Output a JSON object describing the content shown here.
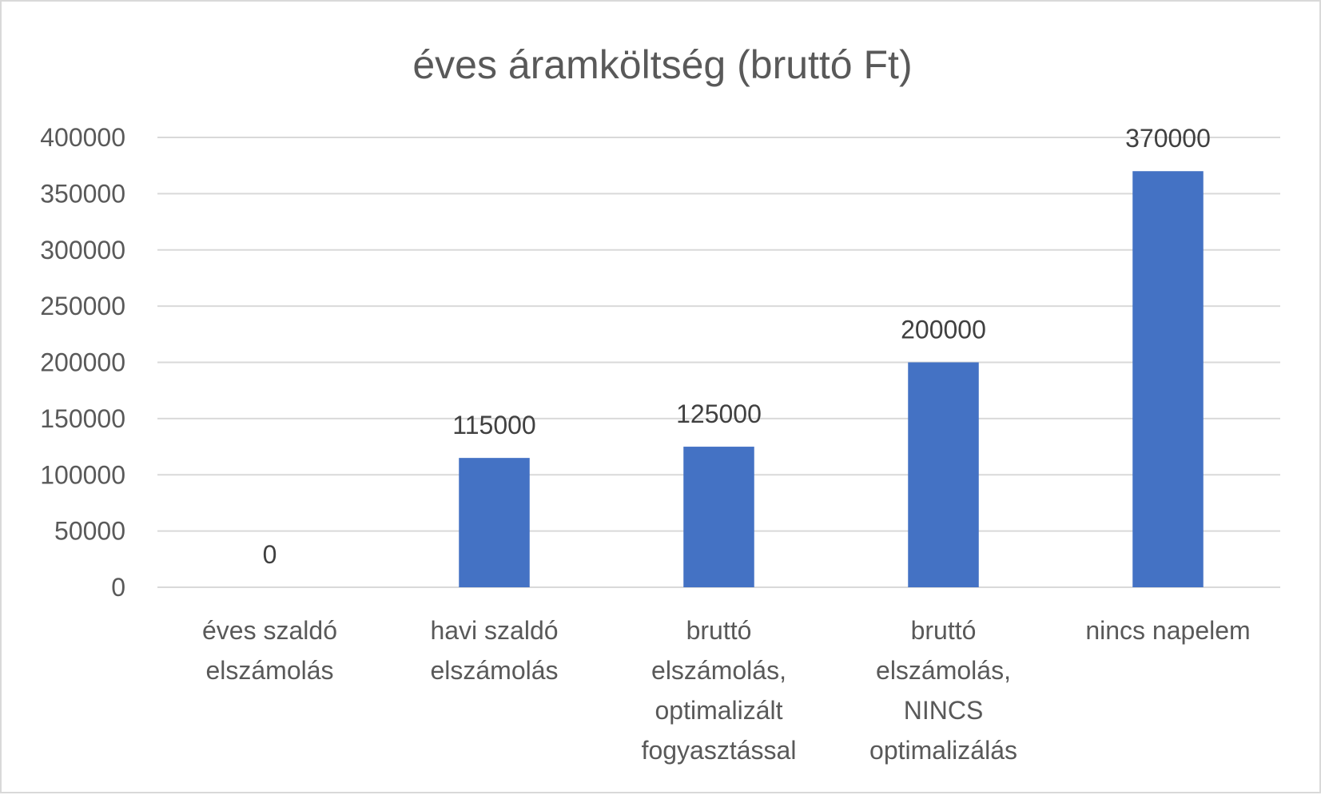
{
  "chart_data": {
    "type": "bar",
    "title": "éves áramköltség (bruttó Ft)",
    "categories": [
      [
        "éves szaldó",
        "elszámolás"
      ],
      [
        "havi szaldó",
        "elszámolás"
      ],
      [
        "bruttó",
        "elszámolás,",
        "optimalizált",
        "fogyasztással"
      ],
      [
        "bruttó",
        "elszámolás,",
        "NINCS",
        "optimalizálás"
      ],
      [
        "nincs napelem"
      ]
    ],
    "values": [
      0,
      115000,
      125000,
      200000,
      370000
    ],
    "data_labels": [
      "0",
      "115000",
      "125000",
      "200000",
      "370000"
    ],
    "ylim": [
      0,
      400000
    ],
    "yticks": [
      0,
      50000,
      100000,
      150000,
      200000,
      250000,
      300000,
      350000,
      400000
    ],
    "ytick_labels": [
      "0",
      "50000",
      "100000",
      "150000",
      "200000",
      "250000",
      "300000",
      "350000",
      "400000"
    ],
    "grid": true,
    "legend": "none",
    "bar_color": "#4472c4"
  }
}
